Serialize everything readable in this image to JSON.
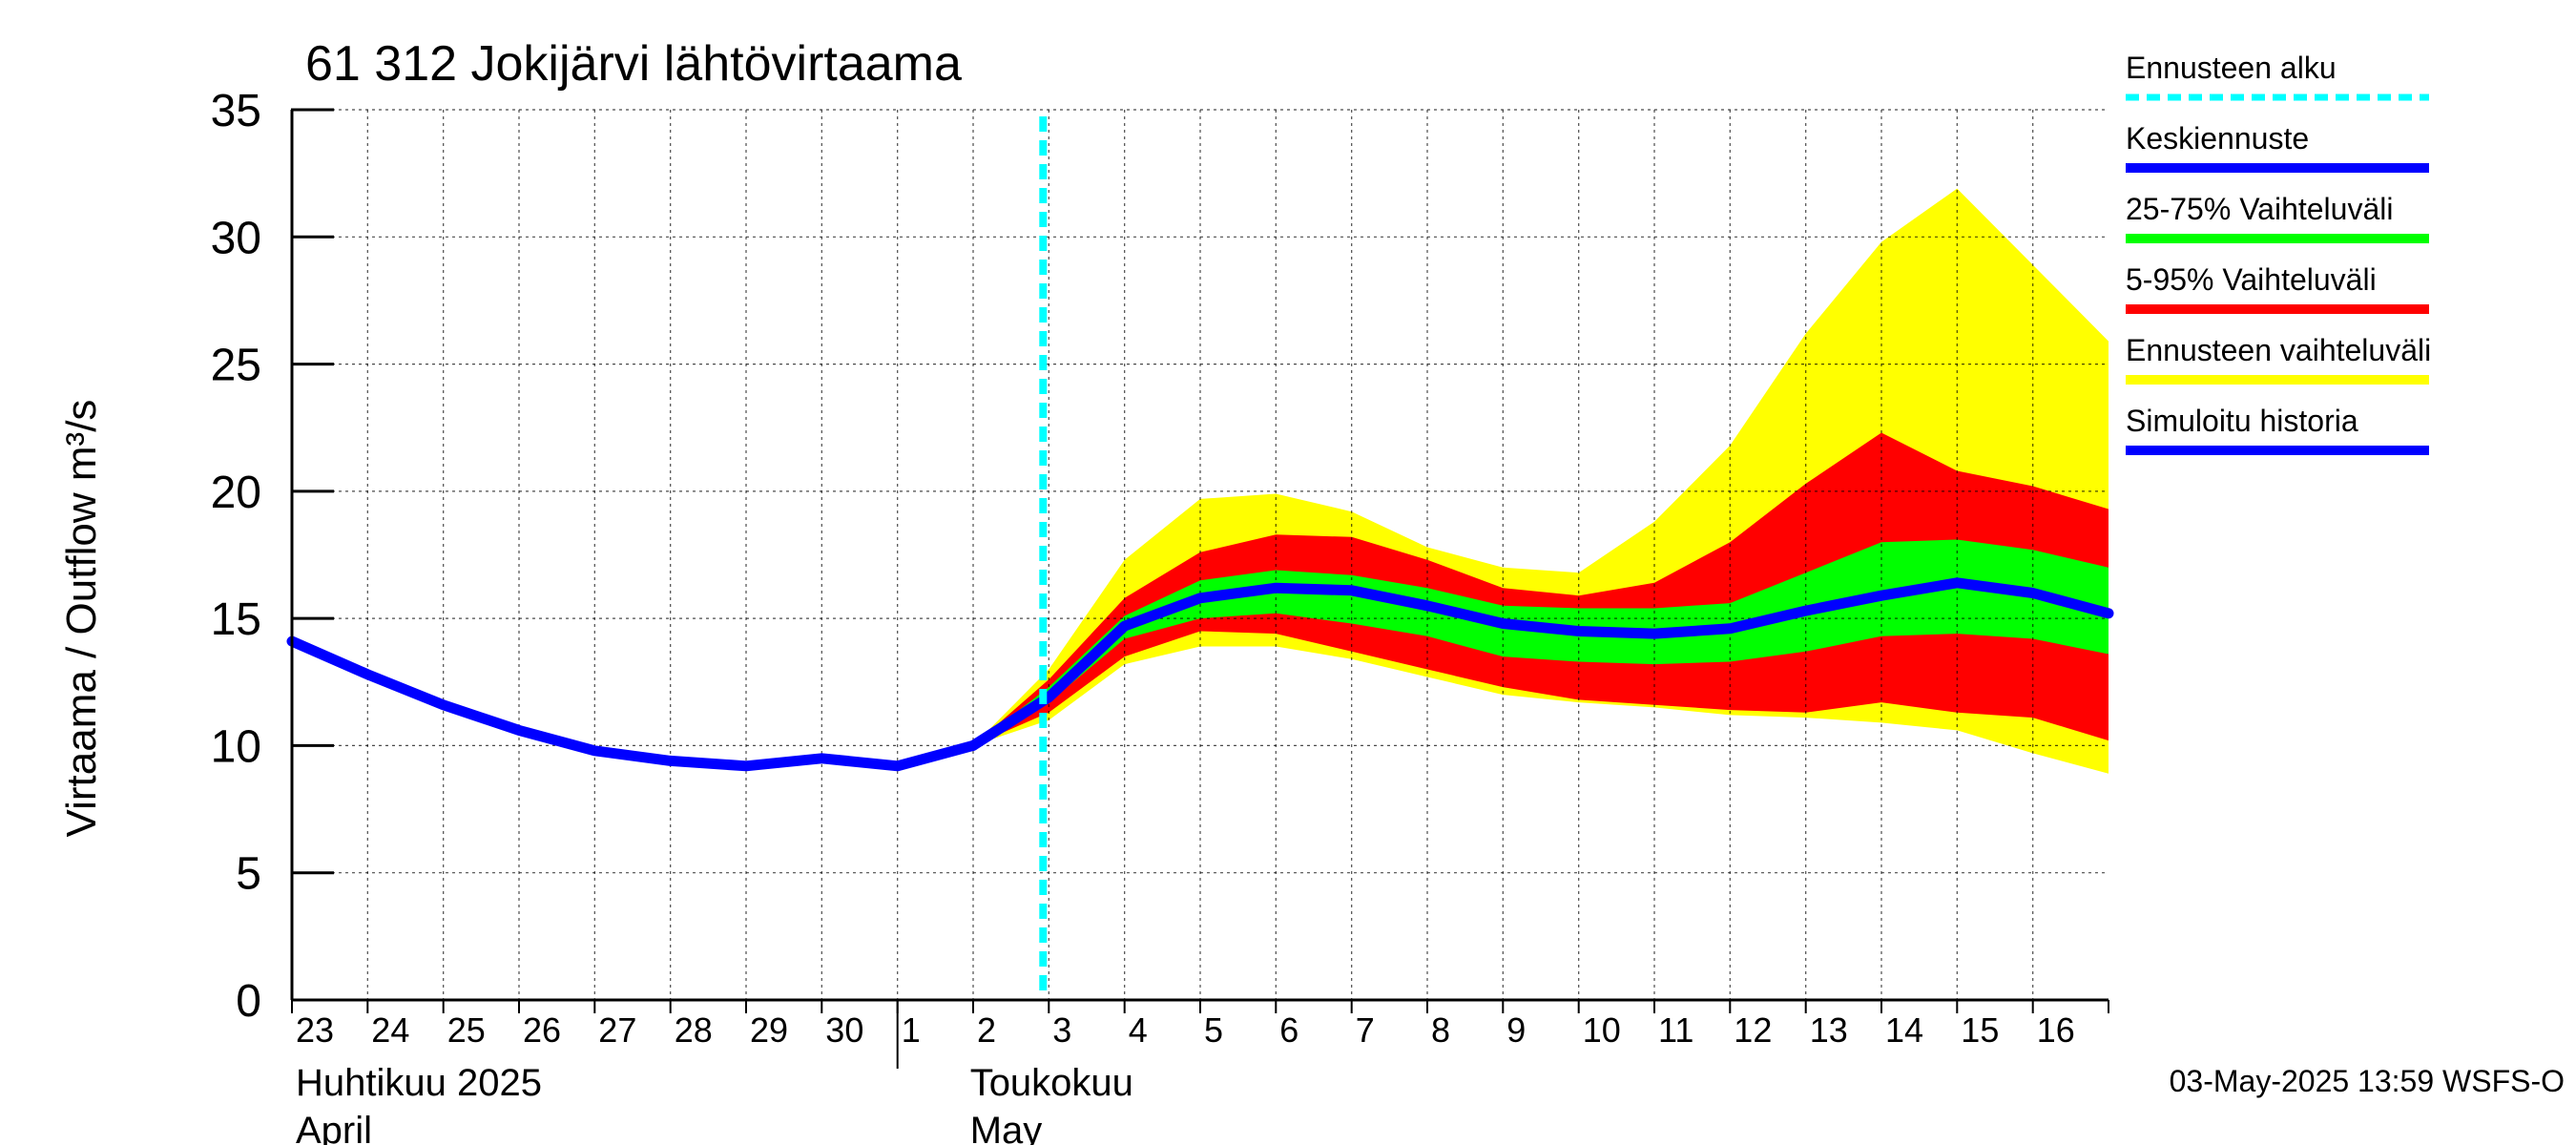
{
  "chart_data": {
    "type": "area",
    "title": "61 312 Jokijärvi lähtövirtaama",
    "ylabel": "Virtaama / Outflow    m³/s",
    "xlabel": "",
    "ylim": [
      0,
      35
    ],
    "y_ticks": [
      0,
      5,
      10,
      15,
      20,
      25,
      30,
      35
    ],
    "x_start": "2025-04-23",
    "x_end": "2025-05-16T24:00",
    "x_tick_labels": [
      "23",
      "24",
      "25",
      "26",
      "27",
      "28",
      "29",
      "30",
      "1",
      "2",
      "3",
      "4",
      "5",
      "6",
      "7",
      "8",
      "9",
      "10",
      "11",
      "12",
      "13",
      "14",
      "15",
      "16"
    ],
    "month_labels": [
      {
        "line1": "Huhtikuu  2025",
        "line2": "April",
        "start": "2025-04-23"
      },
      {
        "line1": "Toukokuu",
        "line2": "May",
        "start": "2025-05-01"
      }
    ],
    "grid": true,
    "legend_position": "right",
    "forecast_start": "2025-05-03",
    "history": {
      "name": "Simuloitu historia",
      "x": [
        "2025-04-23",
        "2025-04-24",
        "2025-04-25",
        "2025-04-26",
        "2025-04-27",
        "2025-04-28",
        "2025-04-29",
        "2025-04-30",
        "2025-05-01",
        "2025-05-02"
      ],
      "y": [
        14.1,
        12.8,
        11.6,
        10.6,
        9.8,
        9.4,
        9.2,
        9.5,
        9.2,
        10.0
      ]
    },
    "forecast_x": [
      "2025-05-02",
      "2025-05-03",
      "2025-05-04",
      "2025-05-05",
      "2025-05-06",
      "2025-05-07",
      "2025-05-08",
      "2025-05-09",
      "2025-05-10",
      "2025-05-11",
      "2025-05-12",
      "2025-05-13",
      "2025-05-14",
      "2025-05-15",
      "2025-05-16",
      "2025-05-17"
    ],
    "series": [
      {
        "name": "Ennusteen vaihteluväli",
        "lower": [
          10.0,
          11.0,
          13.2,
          13.9,
          13.9,
          13.4,
          12.7,
          12.0,
          11.7,
          11.5,
          11.2,
          11.1,
          10.9,
          10.6,
          9.7,
          8.9
        ],
        "upper": [
          10.0,
          13.0,
          17.3,
          19.7,
          19.9,
          19.2,
          17.8,
          17.0,
          16.8,
          18.8,
          21.8,
          26.2,
          29.8,
          31.9,
          28.9,
          25.9
        ]
      },
      {
        "name": "5-95% Vaihteluväli",
        "lower": [
          10.0,
          11.3,
          13.5,
          14.5,
          14.4,
          13.7,
          13.0,
          12.3,
          11.8,
          11.6,
          11.4,
          11.3,
          11.7,
          11.3,
          11.1,
          10.2
        ],
        "upper": [
          10.0,
          12.6,
          15.8,
          17.6,
          18.3,
          18.2,
          17.3,
          16.2,
          15.9,
          16.4,
          18.0,
          20.3,
          22.3,
          20.8,
          20.2,
          19.3
        ]
      },
      {
        "name": "25-75% Vaihteluväli",
        "lower": [
          10.0,
          11.7,
          14.2,
          15.0,
          15.2,
          14.8,
          14.3,
          13.5,
          13.3,
          13.2,
          13.3,
          13.7,
          14.3,
          14.4,
          14.2,
          13.6
        ],
        "upper": [
          10.0,
          12.3,
          15.1,
          16.5,
          16.9,
          16.7,
          16.2,
          15.5,
          15.4,
          15.4,
          15.6,
          16.8,
          18.0,
          18.1,
          17.7,
          17.0
        ]
      },
      {
        "name": "Keskiennuste",
        "y": [
          10.0,
          11.9,
          14.7,
          15.8,
          16.2,
          16.1,
          15.5,
          14.8,
          14.5,
          14.4,
          14.6,
          15.3,
          15.9,
          16.4,
          16.0,
          15.2
        ]
      }
    ],
    "legend": [
      {
        "label": "Ennusteen alku",
        "color": "#00ffff",
        "style": "dashed"
      },
      {
        "label": "Keskiennuste",
        "color": "#0000ff",
        "style": "solid"
      },
      {
        "label": "25-75% Vaihteluväli",
        "color": "#00ff00",
        "style": "solid"
      },
      {
        "label": "5-95% Vaihteluväli",
        "color": "#ff0000",
        "style": "solid"
      },
      {
        "label": "Ennusteen vaihteluväli",
        "color": "#ffff00",
        "style": "solid"
      },
      {
        "label": "Simuloitu historia",
        "color": "#0000ff",
        "style": "solid"
      }
    ],
    "colors": {
      "band_outer": "#ffff00",
      "band_5_95": "#ff0000",
      "band_25_75": "#00ff00",
      "mean_line": "#0000ff",
      "forecast_start_line": "#00ffff"
    },
    "timestamp": "03-May-2025 13:59 WSFS-O"
  }
}
